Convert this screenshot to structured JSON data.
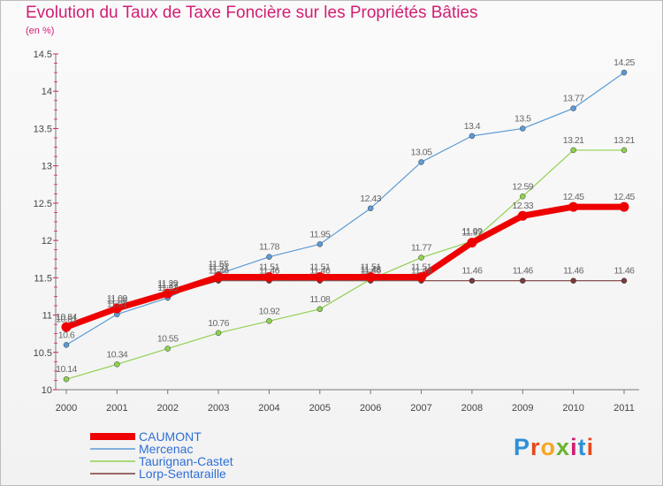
{
  "title": "Evolution du Taux de Taxe Foncière sur les Propriétés Bâties",
  "unit": "(en %)",
  "logo": {
    "text": "Proxiti",
    "colors": [
      "#2e8fd6",
      "#e8491d",
      "#f5a623",
      "#6ab42d",
      "#d21e72",
      "#2e8fd6",
      "#e8491d"
    ]
  },
  "chart_data": {
    "type": "line",
    "x": [
      "2000",
      "2001",
      "2002",
      "2003",
      "2004",
      "2005",
      "2006",
      "2007",
      "2008",
      "2009",
      "2010",
      "2011"
    ],
    "ylim": [
      10,
      14.5
    ],
    "yticks": [
      10,
      10.5,
      11,
      11.5,
      12,
      12.5,
      13,
      13.5,
      14,
      14.5
    ],
    "ytick_labels": [
      "10",
      "10.5",
      "11",
      "11.5",
      "12",
      "12.5",
      "13",
      "13.5",
      "14",
      "14.5"
    ],
    "grid": false,
    "legend_position": "bottom-left",
    "series": [
      {
        "name": "CAUMONT",
        "color": "#ee0000",
        "width": 7,
        "marker_r": 5.5,
        "values": [
          10.84,
          11.09,
          11.29,
          11.51,
          11.51,
          11.51,
          11.51,
          11.51,
          11.97,
          12.33,
          12.45,
          12.45
        ],
        "labels": [
          "10.84",
          "11.09",
          "11.29",
          "11.51",
          "11.51",
          "11.51",
          "11.51",
          "11.51",
          "11.97",
          "12.33",
          "12.45",
          "12.45"
        ]
      },
      {
        "name": "Mercenac",
        "color": "#5b9bd5",
        "width": 1.2,
        "marker_r": 3,
        "values": [
          10.6,
          11.01,
          11.23,
          11.55,
          11.78,
          11.95,
          12.43,
          13.05,
          13.4,
          13.5,
          13.77,
          14.25
        ],
        "labels": [
          "10.6",
          "11.01",
          "11.23",
          "11.55",
          "11.78",
          "11.95",
          "12.43",
          "13.05",
          "13.4",
          "13.5",
          "13.77",
          "14.25"
        ]
      },
      {
        "name": "Taurignan-Castet",
        "color": "#8fd14f",
        "width": 1.2,
        "marker_r": 3,
        "values": [
          10.14,
          10.34,
          10.55,
          10.76,
          10.92,
          11.08,
          11.48,
          11.77,
          11.99,
          12.59,
          13.21,
          13.21
        ],
        "labels": [
          "10.14",
          "10.34",
          "10.55",
          "10.76",
          "10.92",
          "11.08",
          "11.48",
          "11.77",
          "11.99",
          "12.59",
          "13.21",
          "13.21"
        ]
      },
      {
        "name": "Lorp-Sentaraille",
        "color": "#7a3b3b",
        "width": 1.2,
        "marker_r": 3,
        "values": [
          10.81,
          11.06,
          11.27,
          11.46,
          11.46,
          11.46,
          11.46,
          11.46,
          11.46,
          11.46,
          11.46,
          11.46
        ],
        "labels": [
          "10.81",
          "11.06",
          "11.27",
          "11.46",
          "11.46",
          "11.46",
          "11.46",
          "11.46",
          "11.46",
          "11.46",
          "11.46",
          "11.46"
        ]
      }
    ]
  }
}
